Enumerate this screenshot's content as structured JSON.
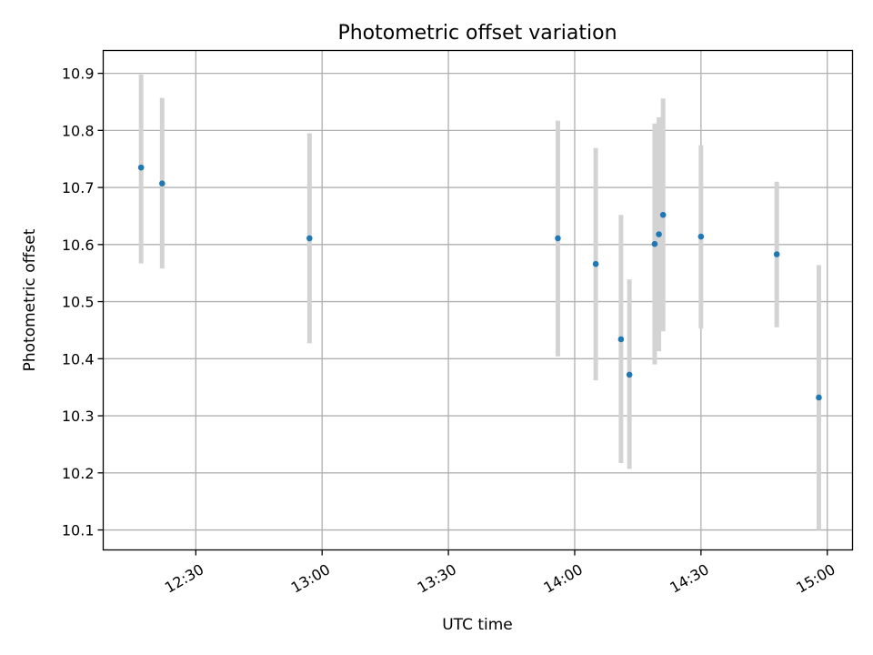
{
  "chart_data": {
    "type": "scatter",
    "title": "Photometric offset variation",
    "xlabel": "UTC time",
    "ylabel": "Photometric offset",
    "x_ticks": [
      "12:30",
      "13:00",
      "13:30",
      "14:00",
      "14:30",
      "15:00"
    ],
    "y_ticks": [
      "10.1",
      "10.2",
      "10.3",
      "10.4",
      "10.5",
      "10.6",
      "10.7",
      "10.8",
      "10.9"
    ],
    "xlim": [
      "12:08",
      "15:06"
    ],
    "ylim": [
      10.065,
      10.94
    ],
    "grid": true,
    "marker_color": "#1f77b4",
    "errorbar_color": "#d3d3d3",
    "series": [
      {
        "points": [
          {
            "x": "12:17",
            "y": 10.735,
            "err_low": 10.567,
            "err_high": 10.898
          },
          {
            "x": "12:22",
            "y": 10.707,
            "err_low": 10.558,
            "err_high": 10.857
          },
          {
            "x": "12:57",
            "y": 10.611,
            "err_low": 10.427,
            "err_high": 10.795
          },
          {
            "x": "13:56",
            "y": 10.611,
            "err_low": 10.404,
            "err_high": 10.817
          },
          {
            "x": "14:05",
            "y": 10.566,
            "err_low": 10.362,
            "err_high": 10.769
          },
          {
            "x": "14:11",
            "y": 10.434,
            "err_low": 10.217,
            "err_high": 10.652
          },
          {
            "x": "14:13",
            "y": 10.372,
            "err_low": 10.207,
            "err_high": 10.539
          },
          {
            "x": "14:19",
            "y": 10.601,
            "err_low": 10.39,
            "err_high": 10.812
          },
          {
            "x": "14:20",
            "y": 10.618,
            "err_low": 10.413,
            "err_high": 10.823
          },
          {
            "x": "14:21",
            "y": 10.652,
            "err_low": 10.448,
            "err_high": 10.856
          },
          {
            "x": "14:30",
            "y": 10.614,
            "err_low": 10.453,
            "err_high": 10.774
          },
          {
            "x": "14:48",
            "y": 10.583,
            "err_low": 10.455,
            "err_high": 10.71
          },
          {
            "x": "14:58",
            "y": 10.332,
            "err_low": 10.1,
            "err_high": 10.564
          }
        ]
      }
    ]
  }
}
